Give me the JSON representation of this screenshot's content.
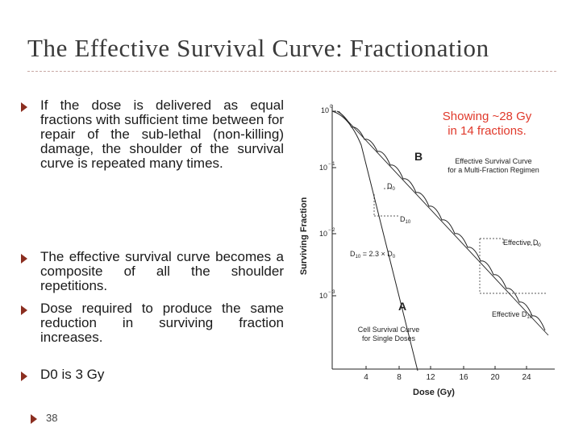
{
  "slide": {
    "title": "The Effective Survival Curve: Fractionation",
    "page_number": "38",
    "bullets": [
      "If the dose is delivered as equal fractions with sufficient time between for repair of the sub-lethal (non-killing) damage, the shoulder of the survival curve is repeated many times.",
      "The effective survival curve becomes a composite of all the shoulder repetitions.",
      "Dose required to produce the same reduction in surviving fraction increases.",
      "D0  is 3 Gy"
    ],
    "annotation_line1": "Showing ~28 Gy",
    "annotation_line2": "in 14 fractions.",
    "accent_color": "#8b2e20",
    "annotation_color": "#e0392b"
  },
  "figure": {
    "ylabel": "Surviving Fraction",
    "xlabel": "Dose (Gy)",
    "ytick_labels": [
      "10",
      "10",
      "10",
      "10"
    ],
    "ytick_exponents": [
      "0",
      "− 1",
      "− 2",
      "− 3"
    ],
    "xtick_labels": [
      "4",
      "8",
      "12",
      "16",
      "20",
      "24"
    ],
    "label_B": "B",
    "label_A": "A",
    "effective_curve_line1": "Effective Survival Curve",
    "effective_curve_line2": "for a Multi-Fraction Regimen",
    "cell_curve_line1": "Cell Survival Curve",
    "cell_curve_line2": "for Single Doses",
    "d0_label": "D",
    "d0_sub": "0",
    "d10_label": "D",
    "d10_sub": "10",
    "relation_label": "D",
    "relation_sub": "10",
    "relation_rest": " = 2.3 × D",
    "relation_sub2": "0",
    "eff_d0_label": "Effective D",
    "eff_d0_sub": "0",
    "eff_d10_label": "Effective D",
    "eff_d10_sub": "10"
  }
}
